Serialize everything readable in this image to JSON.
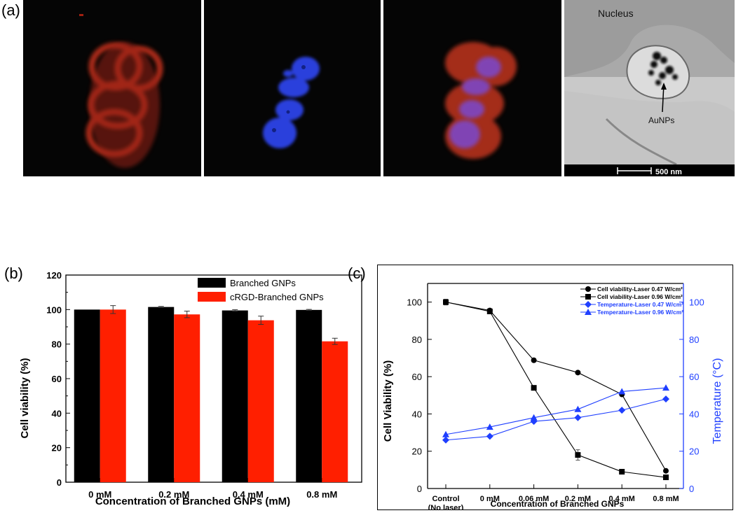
{
  "panel_labels": {
    "a": "(a)",
    "b": "(b)",
    "c": "(c)"
  },
  "micrographs": {
    "tem_labels": {
      "nucleus": "Nucleus",
      "particles": "AuNPs",
      "scale": "500 nm"
    },
    "colors": {
      "red_stain": "#c8321e",
      "blue_stain": "#1e32c8",
      "background": "#050505",
      "tem": "#c9c9c9"
    }
  },
  "chart_data": [
    {
      "type": "bar",
      "panel": "(b)",
      "title": "",
      "categories": [
        "0 mM",
        "0.2 mM",
        "0.4 mM",
        "0.8 mM"
      ],
      "series": [
        {
          "name": "Branched GNPs",
          "color": "#000000",
          "values": [
            100,
            101.5,
            99.5,
            99.8
          ],
          "errors": [
            0,
            0.3,
            0.4,
            0.3
          ]
        },
        {
          "name": "cRGD-Branched GNPs",
          "color": "#ff1f00",
          "values": [
            100,
            97.2,
            93.8,
            81.6
          ],
          "errors": [
            2.3,
            1.9,
            2.4,
            1.8
          ]
        }
      ],
      "xlabel": "Concentration of Branched GNPs (mM)",
      "ylabel": "Cell viability (%)",
      "ylim": [
        0,
        120
      ],
      "yticks": [
        0,
        20,
        40,
        60,
        80,
        100,
        120
      ],
      "legend": "top-right",
      "grid": false
    },
    {
      "type": "line",
      "panel": "(c)",
      "title": "",
      "categories": [
        "Control\n(No laser)",
        "0 mM",
        "0.06 mM",
        "0.2 mM",
        "0.4 mM",
        "0.8 mM"
      ],
      "xlabel": "Concentration of Branched GNPs",
      "ylabel": "Cell Viability (%)",
      "y2label": "Temperature (°C)",
      "ylim": [
        0,
        110
      ],
      "y2lim": [
        0,
        110
      ],
      "yticks": [
        0,
        20,
        40,
        60,
        80,
        100
      ],
      "y2ticks": [
        0,
        20,
        40,
        60,
        80,
        100
      ],
      "legend": "top-right",
      "grid": false,
      "series": [
        {
          "name": "Cell viability-Laser 0.47 W/cm²",
          "axis": "left",
          "marker": "circle",
          "color": "#000000",
          "values": [
            100,
            95.5,
            68.8,
            62.2,
            50.5,
            9.5
          ],
          "errors": [
            1.5,
            0.8,
            0.8,
            0.5,
            0.5,
            0.3
          ]
        },
        {
          "name": "Cell viability-Laser 0.96 W/cm²",
          "axis": "left",
          "marker": "square",
          "color": "#000000",
          "values": [
            100,
            95,
            54,
            18,
            9,
            6
          ],
          "errors": [
            1.5,
            0.8,
            0.8,
            2.8,
            0.3,
            0.3
          ]
        },
        {
          "name": "Temperature-Laser 0.47 W/cm²",
          "axis": "right",
          "marker": "diamond",
          "color": "#1f3fff",
          "values": [
            26,
            28,
            36,
            38,
            42,
            48
          ]
        },
        {
          "name": "Temperature-Laser 0.96 W/cm²",
          "axis": "right",
          "marker": "triangle",
          "color": "#1f3fff",
          "values": [
            29,
            33,
            38,
            42.5,
            52,
            54
          ]
        }
      ]
    }
  ]
}
